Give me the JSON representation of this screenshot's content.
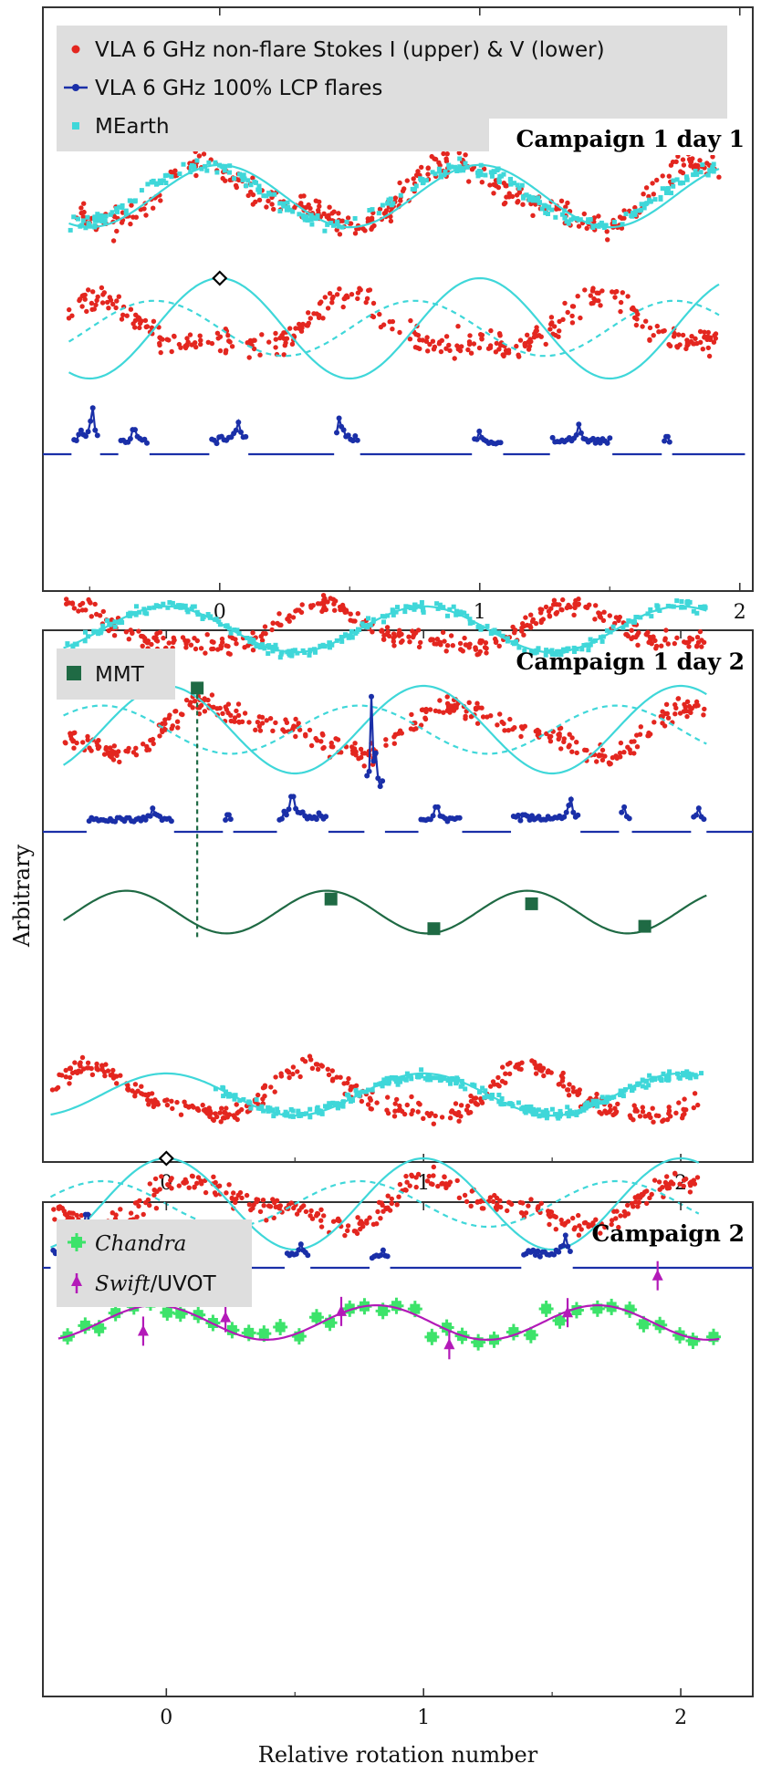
{
  "figure": {
    "ylabel": "Arbitrary",
    "xlabel": "Relative rotation number"
  },
  "colors": {
    "vla_red": "#e3261f",
    "flare_blue": "#1a2fa8",
    "mearth_cyan": "#3fd7d9",
    "mmt_green": "#1f6a44",
    "chandra_green": "#3de36a",
    "swift_magenta": "#b31ab8",
    "legend_bg": "#dedede"
  },
  "chart_data": [
    {
      "type": "scatter",
      "title": "Campaign 1 day 1",
      "xlabel": "",
      "ylabel": "Arbitrary",
      "xlim": [
        -0.68,
        2.05
      ],
      "xticks": [
        0,
        1,
        2
      ],
      "xtick_labels": [
        "0",
        "1",
        "2"
      ],
      "grid": false,
      "legend": {
        "position": "top-left",
        "entries": [
          {
            "label": "VLA 6 GHz non-flare Stokes I (upper) & V (lower)",
            "marker": "dot",
            "color": "#e3261f"
          },
          {
            "label": "VLA 6 GHz 100% LCP flares",
            "marker": "dot-line",
            "color": "#1a2fa8"
          },
          {
            "label": "MEarth",
            "marker": "square",
            "color": "#3fd7d9"
          }
        ]
      },
      "series": [
        {
          "name": "VLA 6 GHz non-flare Stokes I (upper) & V (lower)",
          "kind": "stokes_I",
          "x_range": [
            -0.58,
            1.92
          ],
          "period": 0.95,
          "phase": 0.28,
          "amplitude": 0.55,
          "level": 0.0
        },
        {
          "name": "MEarth",
          "kind": "optical_points",
          "x_range": [
            -0.58,
            1.9
          ],
          "period": 1.0,
          "phase": 0.06,
          "amplitude": 0.58
        },
        {
          "kind": "model_solid_upper",
          "x_range": [
            -0.58,
            1.92
          ],
          "period": 1.0,
          "phase": 0.0,
          "amplitude": 0.62
        },
        {
          "kind": "stokes_V",
          "x_range": [
            -0.58,
            1.92
          ],
          "period": 0.97,
          "phase": 0.73,
          "amplitude": 0.45
        },
        {
          "kind": "model_solid_lower",
          "x_range": [
            -0.58,
            1.92
          ],
          "period": 1.0,
          "phase": 0.0,
          "amplitude": 1.0
        },
        {
          "kind": "model_dashed_lower",
          "x_range": [
            -0.58,
            1.92
          ],
          "period": 1.0,
          "phase": 0.25,
          "amplitude": 0.55
        },
        {
          "name": "VLA 6 GHz 100% LCP flares",
          "kind": "flares",
          "x_range": [
            -0.68,
            2.02
          ],
          "bursts": [
            {
              "x0": -0.56,
              "x1": -0.47,
              "peak": 0.95,
              "peak_x": -0.49
            },
            {
              "x0": -0.38,
              "x1": -0.28,
              "peak": 0.42,
              "peak_x": -0.33
            },
            {
              "x0": -0.03,
              "x1": 0.1,
              "peak": 0.6,
              "peak_x": 0.07
            },
            {
              "x0": 0.45,
              "x1": 0.53,
              "peak": 0.7,
              "peak_x": 0.46
            },
            {
              "x0": 0.98,
              "x1": 1.08,
              "peak": 0.38,
              "peak_x": 1.0
            },
            {
              "x0": 1.28,
              "x1": 1.5,
              "peak": 0.55,
              "peak_x": 1.38
            },
            {
              "x0": 1.71,
              "x1": 1.73,
              "peak": 0.25,
              "peak_x": 1.72
            }
          ]
        },
        {
          "kind": "reference_marker",
          "x": 0.0,
          "marker": "diamond"
        }
      ]
    },
    {
      "type": "scatter",
      "title": "Campaign 1 day 2",
      "xlabel": "",
      "ylabel": "Arbitrary",
      "xlim": [
        -0.48,
        2.28
      ],
      "xticks": [
        0,
        1,
        2
      ],
      "xtick_labels": [
        "0",
        "1",
        "2"
      ],
      "grid": false,
      "legend": {
        "position": "top-left",
        "entries": [
          {
            "label": "MMT",
            "marker": "square",
            "color": "#1f6a44"
          }
        ]
      },
      "series": [
        {
          "kind": "stokes_I",
          "x_range": [
            -0.4,
            2.1
          ],
          "period": 0.98,
          "phase": 0.62,
          "amplitude": 0.5
        },
        {
          "kind": "optical_points",
          "x_range": [
            -0.4,
            2.1
          ],
          "period": 1.0,
          "phase": 0.0,
          "amplitude": 0.62
        },
        {
          "kind": "model_solid_upper",
          "x_range": [
            -0.4,
            2.1
          ],
          "period": 1.0,
          "phase": 0.0,
          "amplitude": 0.6
        },
        {
          "kind": "stokes_V",
          "x_range": [
            -0.4,
            2.1
          ],
          "period": 0.95,
          "phase": 0.02,
          "amplitude": 0.48
        },
        {
          "kind": "model_solid_lower",
          "x_range": [
            -0.4,
            2.1
          ],
          "period": 1.0,
          "phase": 0.0,
          "amplitude": 1.0
        },
        {
          "kind": "model_dashed_lower",
          "x_range": [
            -0.4,
            2.1
          ],
          "period": 1.0,
          "phase": 0.25,
          "amplitude": 0.55
        },
        {
          "kind": "flares",
          "x_range": [
            -0.48,
            2.28
          ],
          "bursts": [
            {
              "x0": -0.3,
              "x1": 0.02,
              "peak": 0.42,
              "peak_x": -0.05
            },
            {
              "x0": 0.23,
              "x1": 0.25,
              "peak": 0.25,
              "peak_x": 0.24
            },
            {
              "x0": 0.44,
              "x1": 0.62,
              "peak": 0.72,
              "peak_x": 0.49
            },
            {
              "x0": 0.78,
              "x1": 0.84,
              "peak": 3.3,
              "peak_x": 0.8
            },
            {
              "x0": 0.99,
              "x1": 1.14,
              "peak": 0.45,
              "peak_x": 1.05
            },
            {
              "x0": 1.35,
              "x1": 1.6,
              "peak": 0.65,
              "peak_x": 1.57
            },
            {
              "x0": 1.77,
              "x1": 1.8,
              "peak": 0.45,
              "peak_x": 1.78
            },
            {
              "x0": 2.05,
              "x1": 2.09,
              "peak": 0.42,
              "peak_x": 2.07
            }
          ]
        },
        {
          "name": "MMT",
          "kind": "mmt_points",
          "x": [
            0.64,
            1.04,
            1.42,
            1.86
          ],
          "y": [
            0.55,
            -0.7,
            0.35,
            -0.6
          ],
          "period": 0.78,
          "phase": 0.45,
          "x_range": [
            -0.4,
            2.1
          ]
        },
        {
          "kind": "mmt_reference",
          "x": 0.12
        },
        {
          "kind": "reference_marker",
          "x": 0.0,
          "marker": "diamond"
        }
      ]
    },
    {
      "type": "scatter",
      "title": "Campaign 2",
      "xlabel": "Relative rotation number",
      "ylabel": "Arbitrary",
      "xlim": [
        -0.48,
        2.28
      ],
      "xticks": [
        0,
        1,
        2
      ],
      "xtick_labels": [
        "0",
        "1",
        "2"
      ],
      "grid": false,
      "legend": {
        "position": "top-left",
        "entries": [
          {
            "label": "Chandra",
            "marker": "cross",
            "color": "#3de36a",
            "italic": true
          },
          {
            "label": "Swift/UVOT",
            "marker": "triangle",
            "color": "#b31ab8",
            "italic_part": "Swift"
          }
        ]
      },
      "series": [
        {
          "kind": "stokes_I",
          "x_range": [
            -0.45,
            2.07
          ],
          "period": 0.85,
          "phase": 0.58,
          "amplitude": 0.6
        },
        {
          "kind": "optical_points",
          "x_range": [
            0.18,
            2.08
          ],
          "period": 1.0,
          "phase": 0.0,
          "amplitude": 0.5
        },
        {
          "kind": "model_solid_upper",
          "x_range": [
            -0.45,
            2.07
          ],
          "period": 1.0,
          "phase": 0.0,
          "amplitude": 0.55
        },
        {
          "kind": "stokes_V",
          "x_range": [
            -0.45,
            2.07
          ],
          "period": 0.95,
          "phase": 0.1,
          "amplitude": 0.42
        },
        {
          "kind": "model_solid_lower",
          "x_range": [
            -0.45,
            2.07
          ],
          "period": 1.0,
          "phase": 0.0,
          "amplitude": 1.0
        },
        {
          "kind": "model_dashed_lower",
          "x_range": [
            -0.45,
            2.07
          ],
          "period": 1.0,
          "phase": 0.25,
          "amplitude": 0.5
        },
        {
          "kind": "flares",
          "x_range": [
            -0.48,
            2.28
          ],
          "bursts": [
            {
              "x0": -0.44,
              "x1": -0.26,
              "peak": 1.55,
              "peak_x": -0.31
            },
            {
              "x0": 0.47,
              "x1": 0.55,
              "peak": 0.55,
              "peak_x": 0.52
            },
            {
              "x0": 0.8,
              "x1": 0.86,
              "peak": 0.35,
              "peak_x": 0.84
            },
            {
              "x0": 1.39,
              "x1": 1.57,
              "peak": 0.85,
              "peak_x": 1.55
            }
          ]
        },
        {
          "name": "Chandra",
          "kind": "chandra_points",
          "x_range": [
            -0.42,
            2.15
          ],
          "count": 40,
          "period": 0.86,
          "phase": 0.3,
          "amplitude": 0.45
        },
        {
          "name": "Swift/UVOT",
          "kind": "swift_points",
          "x": [
            -0.09,
            0.23,
            0.68,
            1.1,
            1.56,
            1.91
          ],
          "y": [
            -0.35,
            0.2,
            0.45,
            -0.9,
            0.4,
            1.9
          ]
        },
        {
          "kind": "swift_model",
          "x_range": [
            -0.42,
            2.15
          ],
          "period": 0.86,
          "phase": 0.3,
          "amplitude": 0.45
        },
        {
          "kind": "chandra_flare_point",
          "x": 0.04
        },
        {
          "kind": "reference_marker",
          "x": 0.0,
          "marker": "diamond"
        }
      ]
    }
  ]
}
